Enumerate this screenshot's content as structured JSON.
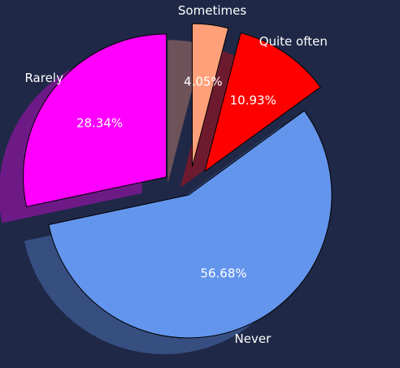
{
  "chart_data": {
    "type": "pie",
    "title": "",
    "slices": [
      {
        "label": "Rarely",
        "value": 28.34,
        "pct_label": "28.34%",
        "color": "#ff00ff",
        "exploded": true
      },
      {
        "label": "Never",
        "value": 56.68,
        "pct_label": "56.68%",
        "color": "#6495ed",
        "exploded": false
      },
      {
        "label": "Quite often",
        "value": 10.93,
        "pct_label": "10.93%",
        "color": "#ff0000",
        "exploded": true
      },
      {
        "label": "Sometimes",
        "value": 4.05,
        "pct_label": "4.05%",
        "color": "#ffa07a",
        "exploded": true
      }
    ],
    "background": "#1f2847",
    "edge_color": "#000000",
    "shadow": true,
    "legend": false
  }
}
